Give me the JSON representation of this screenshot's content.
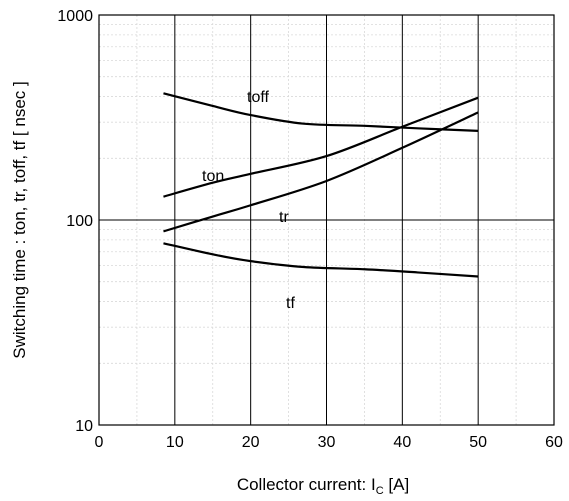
{
  "chart_data": {
    "type": "line",
    "title": "",
    "xlabel": "Collector current: I",
    "xlabel_sub": "C",
    "xlabel_unit": " [A]",
    "ylabel": "Switching time  :  ton, tr, toff, tf  [ nsec ]",
    "xlim": [
      0,
      60
    ],
    "ylim": [
      10,
      1000
    ],
    "yscale": "log",
    "grid": true,
    "x_ticks": [
      "0",
      "10",
      "20",
      "30",
      "40",
      "50",
      "60"
    ],
    "y_ticks": [
      "10",
      "100",
      "1000"
    ],
    "series": [
      {
        "name": "toff",
        "x": [
          8.5,
          15,
          20,
          27,
          35,
          42,
          50
        ],
        "values": [
          415,
          360,
          325,
          295,
          288,
          280,
          272
        ]
      },
      {
        "name": "ton",
        "x": [
          8.5,
          15,
          20,
          30,
          40,
          50
        ],
        "values": [
          130,
          152,
          168,
          205,
          285,
          395
        ]
      },
      {
        "name": "tr",
        "x": [
          8.5,
          15,
          20,
          30,
          40,
          50
        ],
        "values": [
          88,
          104,
          118,
          155,
          225,
          335
        ]
      },
      {
        "name": "tf",
        "x": [
          8.5,
          15,
          20,
          27,
          35,
          42,
          50
        ],
        "values": [
          77,
          68,
          63,
          59,
          57.5,
          55.5,
          53
        ]
      }
    ]
  }
}
